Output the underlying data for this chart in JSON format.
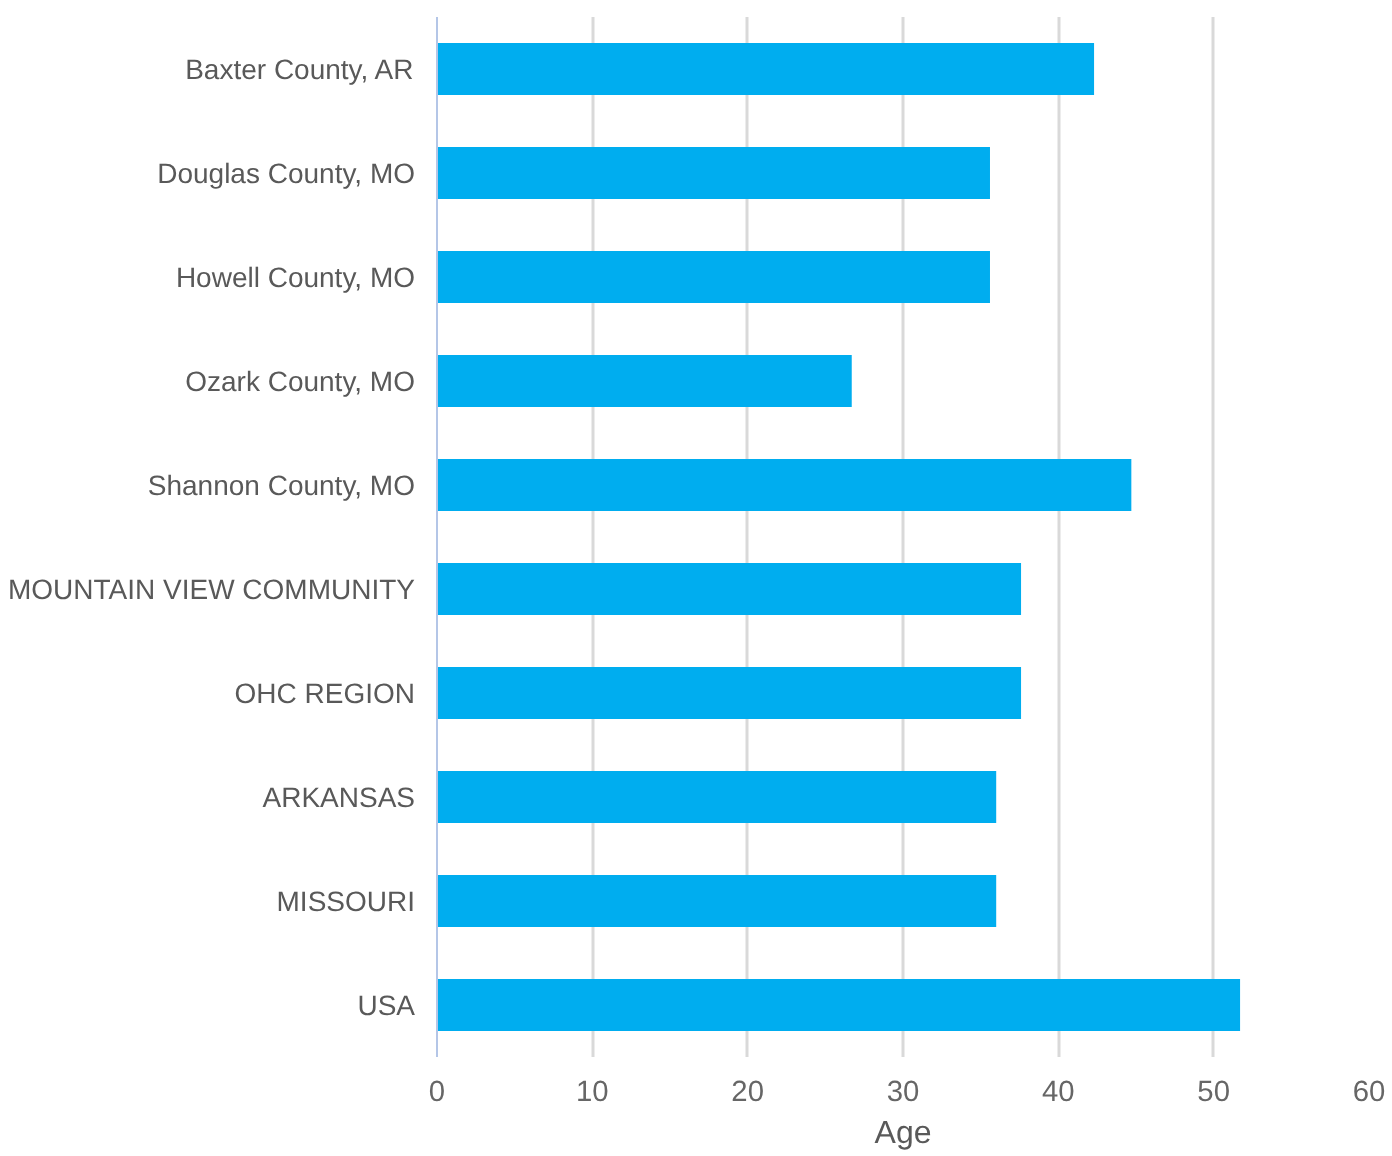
{
  "chart_data": {
    "type": "bar",
    "orientation": "horizontal",
    "xlabel": "Age",
    "categories": [
      "Baxter County, AR",
      "Douglas County, MO",
      "Howell County, MO",
      "Ozark County, MO",
      "Shannon County, MO",
      "MOUNTAIN VIEW COMMUNITY",
      "OHC REGION",
      "ARKANSAS",
      "MISSOURI",
      "USA"
    ],
    "values": [
      42.3,
      35.6,
      35.6,
      26.7,
      44.7,
      37.6,
      37.6,
      36.0,
      36.0,
      51.7
    ],
    "color": "#00adef",
    "xlim": [
      0,
      60
    ],
    "xticks": [
      0,
      10,
      20,
      30,
      40,
      50,
      60
    ],
    "grid": "x"
  }
}
